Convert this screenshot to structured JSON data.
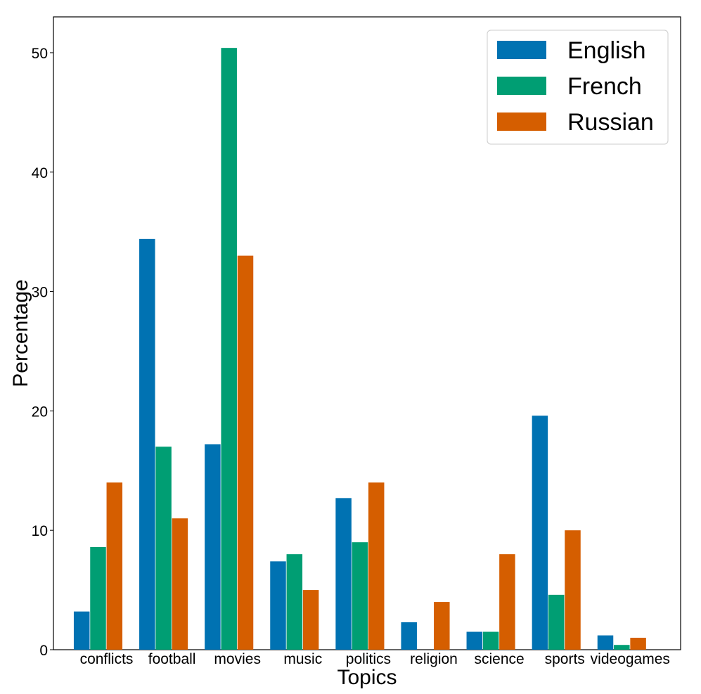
{
  "chart_data": {
    "type": "bar",
    "categories": [
      "conflicts",
      "football",
      "movies",
      "music",
      "politics",
      "religion",
      "science",
      "sports",
      "videogames"
    ],
    "series": [
      {
        "name": "English",
        "color": "#0072b2",
        "values": [
          3.2,
          34.4,
          17.2,
          7.4,
          12.7,
          2.3,
          1.5,
          19.6,
          1.2
        ]
      },
      {
        "name": "French",
        "color": "#009e73",
        "values": [
          8.6,
          17.0,
          50.4,
          8.0,
          9.0,
          0,
          1.5,
          4.6,
          0.4
        ]
      },
      {
        "name": "Russian",
        "color": "#d55e00",
        "values": [
          14.0,
          11.0,
          33.0,
          5.0,
          14.0,
          4.0,
          8.0,
          10.0,
          1.0
        ]
      }
    ],
    "xlabel": "Topics",
    "ylabel": "Percentage",
    "ylim": [
      0,
      53
    ],
    "yticks": [
      0,
      10,
      20,
      30,
      40,
      50
    ],
    "grid": false,
    "legend_position": "top-right"
  }
}
